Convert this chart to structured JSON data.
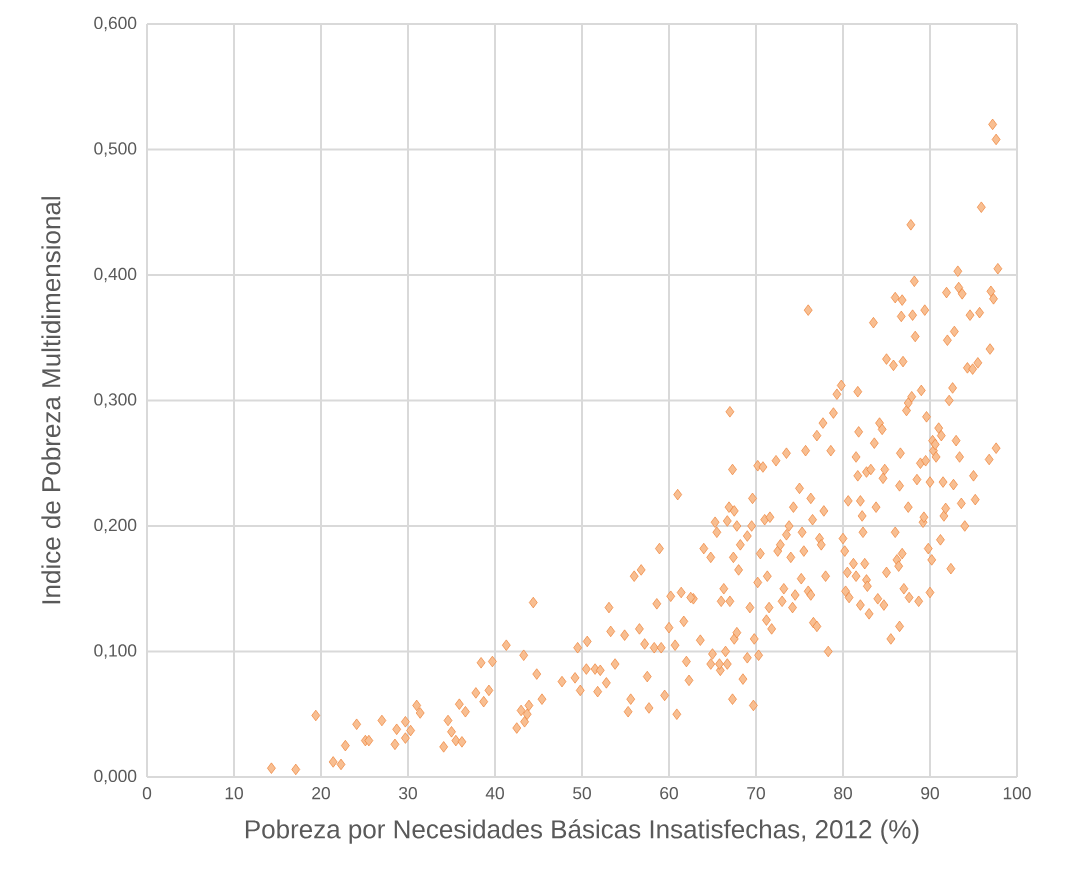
{
  "chart_data": {
    "type": "scatter",
    "xlabel": "Pobreza por Necesidades Básicas Insatisfechas, 2012 (%)",
    "ylabel": "Indice de Pobreza Multidimensional",
    "xlim": [
      0,
      100
    ],
    "xticks": [
      0,
      10,
      20,
      30,
      40,
      50,
      60,
      70,
      80,
      90,
      100
    ],
    "ylim": [
      0,
      0.6
    ],
    "yticks": [
      {
        "value": 0,
        "label": "0,000"
      },
      {
        "value": 0.1,
        "label": "0,100"
      },
      {
        "value": 0.2,
        "label": "0,200"
      },
      {
        "value": 0.3,
        "label": "0,300"
      },
      {
        "value": 0.4,
        "label": "0,400"
      },
      {
        "value": 0.5,
        "label": "0,500"
      },
      {
        "value": 0.6,
        "label": "0,600"
      }
    ],
    "grid": true,
    "marker": "diamond",
    "color": "#ed7d31",
    "x": [
      14.3,
      17.1,
      19.4,
      21.4,
      22.3,
      22.8,
      24.1,
      25.1,
      25.5,
      27.0,
      28.5,
      28.7,
      29.7,
      29.7,
      30.3,
      31.0,
      31.4,
      34.1,
      34.6,
      35.0,
      35.5,
      35.9,
      36.2,
      36.6,
      37.8,
      38.4,
      38.7,
      39.3,
      39.7,
      41.3,
      42.5,
      43.0,
      43.3,
      43.4,
      43.7,
      43.9,
      44.4,
      44.8,
      45.4,
      47.7,
      49.2,
      49.5,
      49.8,
      50.5,
      50.6,
      51.5,
      51.8,
      52.1,
      52.8,
      53.1,
      53.3,
      53.8,
      54.9,
      55.3,
      55.6,
      56.0,
      56.6,
      56.8,
      57.2,
      57.5,
      57.7,
      58.3,
      58.6,
      58.9,
      59.1,
      59.5,
      60.0,
      60.2,
      60.7,
      60.9,
      61.0,
      61.4,
      61.7,
      62.0,
      62.3,
      62.8,
      63.6,
      64.0,
      64.8,
      65.3,
      65.9,
      62.5,
      65.5,
      65.0,
      66.0,
      64.8,
      65.8,
      66.3,
      66.7,
      67.0,
      67.3,
      66.9,
      67.5,
      67.8,
      68.2,
      67.4,
      68.0,
      67.0,
      66.5,
      66.7,
      67.5,
      67.8,
      67.3,
      68.5,
      69.0,
      69.3,
      69.6,
      69.5,
      69.0,
      69.8,
      69.7,
      70.3,
      70.5,
      70.2,
      70.2,
      70.8,
      71.0,
      71.3,
      71.5,
      71.2,
      71.8,
      71.6,
      72.3,
      72.5,
      72.8,
      73.2,
      73.0,
      73.5,
      73.8,
      73.5,
      74.0,
      74.2,
      74.5,
      74.3,
      75.0,
      75.3,
      75.5,
      75.2,
      75.7,
      76.0,
      76.3,
      76.5,
      76.0,
      76.3,
      76.6,
      77.0,
      77.0,
      77.3,
      77.5,
      77.8,
      77.7,
      78.0,
      78.3,
      78.6,
      78.9,
      79.3,
      79.8,
      80.0,
      80.2,
      80.5,
      80.3,
      80.7,
      80.6,
      81.2,
      81.5,
      81.7,
      81.8,
      81.5,
      81.7,
      82.0,
      82.2,
      82.3,
      82.0,
      82.5,
      82.7,
      82.8,
      83.0,
      82.7,
      83.2,
      83.5,
      83.6,
      83.8,
      84.0,
      84.2,
      84.5,
      84.6,
      84.8,
      84.7,
      85.0,
      85.0,
      85.5,
      85.8,
      86.0,
      86.0,
      86.2,
      86.4,
      86.5,
      86.6,
      86.8,
      86.7,
      86.9,
      86.5,
      86.8,
      87.0,
      87.3,
      87.5,
      87.5,
      87.6,
      87.8,
      87.9,
      88.2,
      88.0,
      88.3,
      88.5,
      88.7,
      88.9,
      89.0,
      89.2,
      89.3,
      89.4,
      89.5,
      89.6,
      89.8,
      90.0,
      90.0,
      90.2,
      90.3,
      90.4,
      90.6,
      90.7,
      91.0,
      91.2,
      91.3,
      91.5,
      91.6,
      91.8,
      91.9,
      92.0,
      92.2,
      92.4,
      92.6,
      92.7,
      92.8,
      93.0,
      93.2,
      93.3,
      93.4,
      93.6,
      93.7,
      94.0,
      94.3,
      94.6,
      94.9,
      95.0,
      95.2,
      95.5,
      95.7,
      95.9,
      96.8,
      96.9,
      97.0,
      97.2,
      97.3,
      97.6,
      97.8,
      97.6
    ],
    "values": [
      0.007,
      0.006,
      0.049,
      0.012,
      0.01,
      0.025,
      0.042,
      0.029,
      0.029,
      0.045,
      0.026,
      0.038,
      0.044,
      0.031,
      0.037,
      0.057,
      0.051,
      0.024,
      0.045,
      0.036,
      0.029,
      0.058,
      0.028,
      0.052,
      0.067,
      0.091,
      0.06,
      0.069,
      0.092,
      0.105,
      0.039,
      0.053,
      0.097,
      0.044,
      0.05,
      0.057,
      0.139,
      0.082,
      0.062,
      0.076,
      0.079,
      0.103,
      0.069,
      0.086,
      0.108,
      0.086,
      0.068,
      0.085,
      0.075,
      0.135,
      0.116,
      0.09,
      0.113,
      0.052,
      0.062,
      0.16,
      0.118,
      0.165,
      0.106,
      0.08,
      0.055,
      0.103,
      0.138,
      0.182,
      0.103,
      0.065,
      0.119,
      0.144,
      0.105,
      0.05,
      0.225,
      0.147,
      0.124,
      0.092,
      0.077,
      0.142,
      0.109,
      0.182,
      0.175,
      0.203,
      0.085,
      0.143,
      0.195,
      0.098,
      0.14,
      0.09,
      0.09,
      0.15,
      0.204,
      0.291,
      0.245,
      0.215,
      0.212,
      0.2,
      0.185,
      0.175,
      0.165,
      0.14,
      0.1,
      0.09,
      0.11,
      0.115,
      0.062,
      0.078,
      0.095,
      0.135,
      0.222,
      0.2,
      0.192,
      0.11,
      0.057,
      0.097,
      0.178,
      0.155,
      0.248,
      0.247,
      0.205,
      0.16,
      0.135,
      0.125,
      0.118,
      0.207,
      0.252,
      0.18,
      0.185,
      0.15,
      0.14,
      0.258,
      0.2,
      0.193,
      0.175,
      0.135,
      0.145,
      0.215,
      0.23,
      0.195,
      0.18,
      0.158,
      0.26,
      0.372,
      0.222,
      0.205,
      0.148,
      0.145,
      0.123,
      0.12,
      0.272,
      0.19,
      0.185,
      0.212,
      0.282,
      0.16,
      0.1,
      0.26,
      0.29,
      0.305,
      0.312,
      0.19,
      0.18,
      0.163,
      0.148,
      0.143,
      0.22,
      0.17,
      0.16,
      0.307,
      0.275,
      0.255,
      0.24,
      0.22,
      0.208,
      0.195,
      0.137,
      0.17,
      0.157,
      0.152,
      0.13,
      0.243,
      0.245,
      0.362,
      0.266,
      0.215,
      0.142,
      0.282,
      0.277,
      0.238,
      0.245,
      0.137,
      0.163,
      0.333,
      0.11,
      0.328,
      0.382,
      0.195,
      0.173,
      0.168,
      0.232,
      0.258,
      0.38,
      0.367,
      0.331,
      0.12,
      0.178,
      0.15,
      0.292,
      0.298,
      0.215,
      0.143,
      0.44,
      0.303,
      0.395,
      0.368,
      0.351,
      0.237,
      0.14,
      0.25,
      0.308,
      0.203,
      0.207,
      0.372,
      0.252,
      0.287,
      0.182,
      0.147,
      0.235,
      0.173,
      0.268,
      0.26,
      0.265,
      0.255,
      0.278,
      0.189,
      0.272,
      0.235,
      0.208,
      0.214,
      0.386,
      0.348,
      0.3,
      0.166,
      0.31,
      0.233,
      0.355,
      0.268,
      0.403,
      0.39,
      0.255,
      0.218,
      0.385,
      0.2,
      0.326,
      0.368,
      0.325,
      0.24,
      0.221,
      0.33,
      0.37,
      0.454,
      0.253,
      0.341,
      0.387,
      0.52,
      0.381,
      0.508,
      0.405,
      0.262
    ]
  }
}
